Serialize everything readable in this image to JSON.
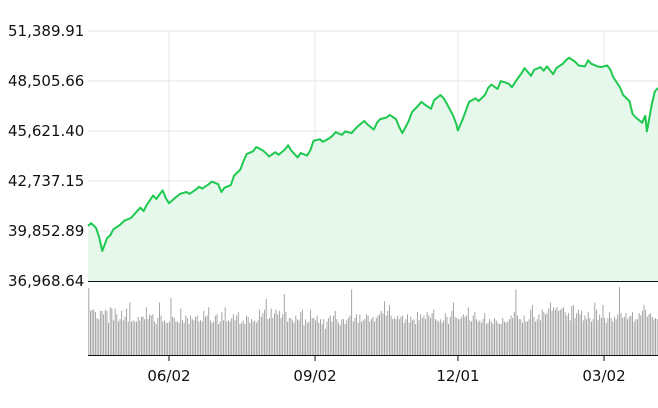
{
  "chart_data": [
    {
      "type": "area",
      "title": "",
      "xlabel": "",
      "ylabel": "",
      "ylim": [
        36968.64,
        51389.91
      ],
      "y_ticks": [
        "51,389.91",
        "48,505.66",
        "45,621.40",
        "42,737.15",
        "39,852.89",
        "36,968.64"
      ],
      "x_ticks": [
        "06/02",
        "09/02",
        "12/01",
        "03/02"
      ],
      "grid": true,
      "colors": {
        "line": "#1fc94f",
        "fill": "#e6f8ec",
        "volume": "#9a9a9a",
        "axis": "#111111"
      },
      "x_start": "2023-04-12",
      "x_end": "2024-04-05",
      "points": [
        [
          "2023-04-12",
          40150
        ],
        [
          "2023-04-14",
          40300
        ],
        [
          "2023-04-17",
          40050
        ],
        [
          "2023-04-19",
          39500
        ],
        [
          "2023-04-21",
          38700
        ],
        [
          "2023-04-24",
          39450
        ],
        [
          "2023-04-26",
          39600
        ],
        [
          "2023-04-28",
          39950
        ],
        [
          "2023-05-02",
          40200
        ],
        [
          "2023-05-05",
          40450
        ],
        [
          "2023-05-09",
          40600
        ],
        [
          "2023-05-12",
          40900
        ],
        [
          "2023-05-15",
          41200
        ],
        [
          "2023-05-17",
          41000
        ],
        [
          "2023-05-19",
          41350
        ],
        [
          "2023-05-23",
          41900
        ],
        [
          "2023-05-25",
          41700
        ],
        [
          "2023-05-29",
          42200
        ],
        [
          "2023-05-31",
          41750
        ],
        [
          "2023-06-02",
          41450
        ],
        [
          "2023-06-05",
          41700
        ],
        [
          "2023-06-07",
          41850
        ],
        [
          "2023-06-09",
          42000
        ],
        [
          "2023-06-13",
          42100
        ],
        [
          "2023-06-15",
          42000
        ],
        [
          "2023-06-19",
          42250
        ],
        [
          "2023-06-21",
          42400
        ],
        [
          "2023-06-23",
          42300
        ],
        [
          "2023-06-27",
          42550
        ],
        [
          "2023-06-29",
          42700
        ],
        [
          "2023-07-03",
          42550
        ],
        [
          "2023-07-05",
          42100
        ],
        [
          "2023-07-07",
          42350
        ],
        [
          "2023-07-11",
          42500
        ],
        [
          "2023-07-13",
          43050
        ],
        [
          "2023-07-17",
          43400
        ],
        [
          "2023-07-19",
          43900
        ],
        [
          "2023-07-21",
          44300
        ],
        [
          "2023-07-25",
          44450
        ],
        [
          "2023-07-27",
          44700
        ],
        [
          "2023-07-31",
          44500
        ],
        [
          "2023-08-02",
          44350
        ],
        [
          "2023-08-04",
          44150
        ],
        [
          "2023-08-08",
          44400
        ],
        [
          "2023-08-10",
          44250
        ],
        [
          "2023-08-14",
          44550
        ],
        [
          "2023-08-16",
          44800
        ],
        [
          "2023-08-18",
          44500
        ],
        [
          "2023-08-22",
          44100
        ],
        [
          "2023-08-24",
          44350
        ],
        [
          "2023-08-28",
          44200
        ],
        [
          "2023-08-30",
          44500
        ],
        [
          "2023-09-01",
          45050
        ],
        [
          "2023-09-05",
          45150
        ],
        [
          "2023-09-07",
          45000
        ],
        [
          "2023-09-11",
          45200
        ],
        [
          "2023-09-13",
          45350
        ],
        [
          "2023-09-15",
          45550
        ],
        [
          "2023-09-19",
          45400
        ],
        [
          "2023-09-21",
          45600
        ],
        [
          "2023-09-25",
          45500
        ],
        [
          "2023-09-27",
          45700
        ],
        [
          "2023-09-29",
          45900
        ],
        [
          "2023-10-03",
          46200
        ],
        [
          "2023-10-05",
          46000
        ],
        [
          "2023-10-09",
          45700
        ],
        [
          "2023-10-11",
          46100
        ],
        [
          "2023-10-13",
          46300
        ],
        [
          "2023-10-17",
          46400
        ],
        [
          "2023-10-19",
          46550
        ],
        [
          "2023-10-23",
          46300
        ],
        [
          "2023-10-25",
          45850
        ],
        [
          "2023-10-27",
          45500
        ],
        [
          "2023-10-31",
          46200
        ],
        [
          "2023-11-02",
          46700
        ],
        [
          "2023-11-06",
          47100
        ],
        [
          "2023-11-08",
          47300
        ],
        [
          "2023-11-10",
          47150
        ],
        [
          "2023-11-14",
          46900
        ],
        [
          "2023-11-16",
          47400
        ],
        [
          "2023-11-20",
          47700
        ],
        [
          "2023-11-22",
          47500
        ],
        [
          "2023-11-24",
          47200
        ],
        [
          "2023-11-28",
          46500
        ],
        [
          "2023-11-30",
          46000
        ],
        [
          "2023-12-01",
          45650
        ],
        [
          "2023-12-04",
          46300
        ],
        [
          "2023-12-06",
          46800
        ],
        [
          "2023-12-08",
          47300
        ],
        [
          "2023-12-12",
          47500
        ],
        [
          "2023-12-14",
          47350
        ],
        [
          "2023-12-18",
          47700
        ],
        [
          "2023-12-20",
          48100
        ],
        [
          "2023-12-22",
          48300
        ],
        [
          "2023-12-26",
          48050
        ],
        [
          "2023-12-28",
          48500
        ],
        [
          "2024-01-02",
          48350
        ],
        [
          "2024-01-04",
          48150
        ],
        [
          "2024-01-08",
          48700
        ],
        [
          "2024-01-10",
          48950
        ],
        [
          "2024-01-12",
          49250
        ],
        [
          "2024-01-16",
          48800
        ],
        [
          "2024-01-18",
          49150
        ],
        [
          "2024-01-22",
          49300
        ],
        [
          "2024-01-24",
          49100
        ],
        [
          "2024-01-26",
          49350
        ],
        [
          "2024-01-30",
          48900
        ],
        [
          "2024-02-01",
          49250
        ],
        [
          "2024-02-05",
          49500
        ],
        [
          "2024-02-07",
          49700
        ],
        [
          "2024-02-09",
          49850
        ],
        [
          "2024-02-13",
          49600
        ],
        [
          "2024-02-15",
          49400
        ],
        [
          "2024-02-19",
          49350
        ],
        [
          "2024-02-21",
          49700
        ],
        [
          "2024-02-23",
          49500
        ],
        [
          "2024-02-27",
          49350
        ],
        [
          "2024-02-29",
          49300
        ],
        [
          "2024-03-04",
          49400
        ],
        [
          "2024-03-06",
          49150
        ],
        [
          "2024-03-08",
          48700
        ],
        [
          "2024-03-12",
          48150
        ],
        [
          "2024-03-14",
          47700
        ],
        [
          "2024-03-18",
          47350
        ],
        [
          "2024-03-20",
          46600
        ],
        [
          "2024-03-22",
          46400
        ],
        [
          "2024-03-26",
          46100
        ],
        [
          "2024-03-28",
          46500
        ],
        [
          "2024-03-29",
          45600
        ],
        [
          "2024-04-01",
          47100
        ],
        [
          "2024-04-03",
          47900
        ],
        [
          "2024-04-05",
          48100
        ]
      ],
      "volume": [
        56,
        37,
        38,
        38,
        36,
        31,
        30,
        37,
        37,
        34,
        38,
        37,
        27,
        40,
        39,
        29,
        39,
        34,
        28,
        30,
        37,
        29,
        32,
        39,
        28,
        44,
        28,
        29,
        28,
        28,
        32,
        29,
        32,
        32,
        30,
        40,
        30,
        34,
        33,
        34,
        28,
        26,
        31,
        44,
        33,
        28,
        29,
        27,
        27,
        28,
        48,
        32,
        31,
        28,
        28,
        27,
        39,
        29,
        27,
        33,
        31,
        26,
        33,
        30,
        29,
        32,
        33,
        28,
        29,
        28,
        37,
        32,
        33,
        40,
        29,
        27,
        28,
        33,
        34,
        26,
        28,
        36,
        29,
        40,
        28,
        29,
        28,
        31,
        34,
        29,
        33,
        36,
        26,
        27,
        29,
        26,
        33,
        32,
        27,
        30,
        28,
        29,
        27,
        29,
        38,
        32,
        35,
        38,
        47,
        30,
        31,
        39,
        31,
        35,
        38,
        34,
        37,
        31,
        34,
        51,
        36,
        28,
        31,
        31,
        29,
        27,
        33,
        30,
        29,
        36,
        38,
        25,
        30,
        27,
        28,
        38,
        31,
        31,
        29,
        33,
        27,
        30,
        26,
        30,
        22,
        28,
        31,
        33,
        28,
        33,
        37,
        30,
        27,
        25,
        30,
        30,
        26,
        29,
        31,
        33,
        55,
        28,
        31,
        34,
        27,
        34,
        28,
        29,
        30,
        34,
        33,
        28,
        30,
        32,
        28,
        31,
        33,
        34,
        37,
        35,
        45,
        33,
        37,
        42,
        33,
        30,
        31,
        30,
        33,
        30,
        32,
        33,
        27,
        30,
        34,
        27,
        32,
        29,
        30,
        26,
        36,
        29,
        34,
        31,
        33,
        30,
        36,
        33,
        31,
        35,
        38,
        30,
        29,
        28,
        30,
        27,
        29,
        35,
        32,
        26,
        32,
        37,
        44,
        32,
        31,
        30,
        30,
        32,
        34,
        32,
        33,
        40,
        29,
        28,
        33,
        36,
        30,
        28,
        29,
        27,
        30,
        35,
        26,
        27,
        30,
        28,
        26,
        31,
        29,
        27,
        26,
        26,
        31,
        28,
        27,
        28,
        30,
        33,
        31,
        36,
        55,
        33,
        30,
        30,
        27,
        33,
        28,
        28,
        30,
        38,
        42,
        32,
        28,
        30,
        34,
        29,
        38,
        36,
        34,
        35,
        39,
        44,
        37,
        40,
        38,
        40,
        37,
        38,
        39,
        40,
        36,
        33,
        35,
        29,
        41,
        42,
        31,
        35,
        38,
        34,
        37,
        29,
        33,
        30,
        36,
        31,
        28,
        30,
        44,
        38,
        29,
        34,
        31,
        42,
        31,
        27,
        31,
        36,
        31,
        28,
        32,
        30,
        34,
        57,
        35,
        31,
        32,
        35,
        30,
        32,
        33,
        36,
        28,
        30,
        30,
        35,
        33,
        37,
        42,
        38,
        32,
        34,
        35,
        32,
        30,
        31,
        30
      ]
    }
  ]
}
